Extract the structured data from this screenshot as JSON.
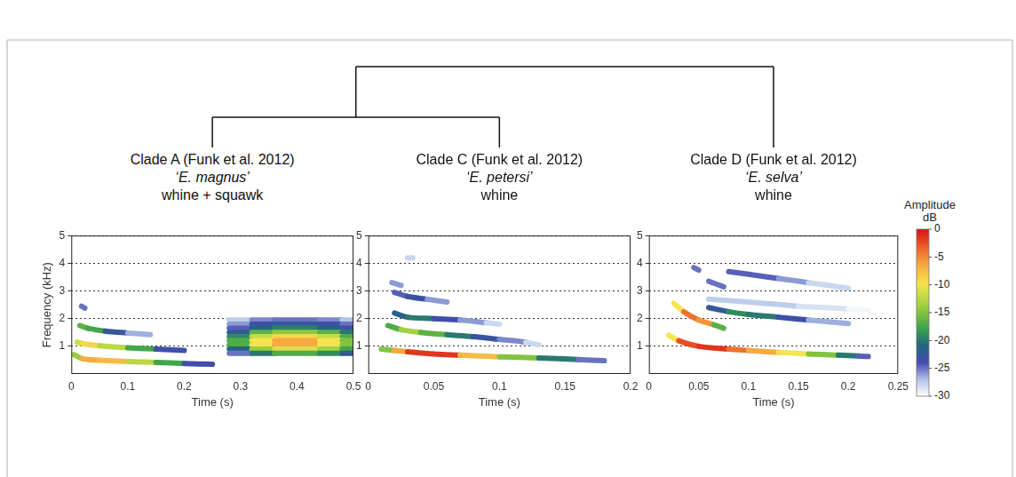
{
  "chart_data": [
    {
      "type": "line",
      "title": "Clade A (Funk et al. 2012)",
      "subtitle": "‘E. magnus’",
      "annotation": "whine + squawk",
      "x_label": "Time (s)",
      "y_label": "Frequency (kHz)",
      "xlim": [
        0,
        0.5
      ],
      "xticks": [
        0,
        0.1,
        0.2,
        0.3,
        0.4,
        0.5
      ],
      "ylim": [
        0,
        5
      ],
      "yticks": [
        1,
        2,
        3,
        4,
        5
      ],
      "grid": true,
      "contours": [
        {
          "x": [
            0.005,
            0.02,
            0.05,
            0.1,
            0.15,
            0.2,
            0.25
          ],
          "values": [
            0.7,
            0.55,
            0.5,
            0.45,
            0.42,
            0.38,
            0.35
          ],
          "amplitude": [
            -20,
            -8,
            -5,
            -10,
            -15,
            -20,
            -27
          ]
        },
        {
          "x": [
            0.01,
            0.02,
            0.05,
            0.1,
            0.15,
            0.2
          ],
          "values": [
            1.15,
            1.1,
            1.02,
            0.95,
            0.9,
            0.85
          ],
          "amplitude": [
            -15,
            -8,
            -10,
            -15,
            -20,
            -27
          ]
        },
        {
          "x": [
            0.015,
            0.03,
            0.06,
            0.1,
            0.14
          ],
          "values": [
            1.75,
            1.65,
            1.55,
            1.48,
            1.42
          ],
          "amplitude": [
            -18,
            -15,
            -20,
            -25,
            -28
          ]
        },
        {
          "x": [
            0.018,
            0.024
          ],
          "values": [
            2.45,
            2.38
          ],
          "amplitude": [
            -25,
            -25
          ]
        },
        {
          "x": [
            0.28,
            0.32,
            0.36,
            0.4,
            0.44,
            0.48,
            0.5
          ],
          "values": [
            0.75,
            0.75,
            0.75,
            0.75,
            0.75,
            0.75,
            0.75
          ],
          "amplitude": [
            -28,
            -22,
            -18,
            -16,
            -18,
            -20,
            -24
          ]
        },
        {
          "x": [
            0.28,
            0.32,
            0.36,
            0.4,
            0.44,
            0.48,
            0.5
          ],
          "values": [
            0.9,
            0.9,
            0.9,
            0.9,
            0.9,
            0.9,
            0.9
          ],
          "amplitude": [
            -26,
            -16,
            -12,
            -10,
            -12,
            -15,
            -20
          ]
        },
        {
          "x": [
            0.28,
            0.32,
            0.36,
            0.4,
            0.44,
            0.48,
            0.5
          ],
          "values": [
            1.05,
            1.05,
            1.05,
            1.05,
            1.05,
            1.05,
            1.05
          ],
          "amplitude": [
            -22,
            -12,
            -8,
            -5,
            -8,
            -12,
            -18
          ]
        },
        {
          "x": [
            0.28,
            0.32,
            0.36,
            0.4,
            0.44,
            0.48,
            0.5
          ],
          "values": [
            1.2,
            1.2,
            1.2,
            1.2,
            1.2,
            1.2,
            1.2
          ],
          "amplitude": [
            -22,
            -12,
            -8,
            -5,
            -8,
            -12,
            -18
          ]
        },
        {
          "x": [
            0.28,
            0.32,
            0.36,
            0.4,
            0.44,
            0.48,
            0.5
          ],
          "values": [
            1.35,
            1.35,
            1.35,
            1.35,
            1.35,
            1.35,
            1.35
          ],
          "amplitude": [
            -24,
            -14,
            -10,
            -8,
            -10,
            -14,
            -20
          ]
        },
        {
          "x": [
            0.28,
            0.32,
            0.36,
            0.4,
            0.44,
            0.48,
            0.5
          ],
          "values": [
            1.5,
            1.5,
            1.5,
            1.5,
            1.5,
            1.5,
            1.5
          ],
          "amplitude": [
            -26,
            -18,
            -15,
            -14,
            -15,
            -18,
            -22
          ]
        },
        {
          "x": [
            0.28,
            0.32,
            0.36,
            0.4,
            0.44,
            0.48,
            0.5
          ],
          "values": [
            1.65,
            1.65,
            1.65,
            1.65,
            1.65,
            1.65,
            1.65
          ],
          "amplitude": [
            -27,
            -22,
            -20,
            -19,
            -20,
            -22,
            -25
          ]
        },
        {
          "x": [
            0.28,
            0.32,
            0.36,
            0.4,
            0.44,
            0.48,
            0.5
          ],
          "values": [
            1.8,
            1.8,
            1.8,
            1.8,
            1.8,
            1.8,
            1.8
          ],
          "amplitude": [
            -28,
            -24,
            -23,
            -22,
            -23,
            -24,
            -26
          ]
        },
        {
          "x": [
            0.28,
            0.32,
            0.36,
            0.4,
            0.44,
            0.48,
            0.5
          ],
          "values": [
            1.95,
            1.95,
            1.95,
            1.95,
            1.95,
            1.95,
            1.95
          ],
          "amplitude": [
            -29,
            -26,
            -25,
            -25,
            -25,
            -26,
            -28
          ]
        }
      ]
    },
    {
      "type": "line",
      "title": "Clade C (Funk et al. 2012)",
      "subtitle": "‘E. petersi’",
      "annotation": "whine",
      "x_label": "Time (s)",
      "xlim": [
        0,
        0.2
      ],
      "xticks": [
        0,
        0.05,
        0.1,
        0.15,
        0.2
      ],
      "ylim": [
        0,
        5
      ],
      "yticks": [
        1,
        2,
        3,
        4,
        5
      ],
      "grid": true,
      "contours": [
        {
          "x": [
            0.01,
            0.02,
            0.03,
            0.05,
            0.07,
            0.1,
            0.13,
            0.16,
            0.18
          ],
          "values": [
            0.9,
            0.85,
            0.8,
            0.72,
            0.68,
            0.62,
            0.58,
            0.52,
            0.48
          ],
          "amplitude": [
            -20,
            -10,
            -3,
            0,
            -3,
            -12,
            -18,
            -22,
            -28
          ]
        },
        {
          "x": [
            0.015,
            0.025,
            0.04,
            0.06,
            0.08,
            0.1,
            0.12,
            0.13
          ],
          "values": [
            1.75,
            1.6,
            1.5,
            1.42,
            1.35,
            1.25,
            1.15,
            1.05
          ],
          "amplitude": [
            -22,
            -12,
            -15,
            -18,
            -22,
            -24,
            -27,
            -29
          ]
        },
        {
          "x": [
            0.02,
            0.03,
            0.05,
            0.07,
            0.09,
            0.1
          ],
          "values": [
            2.2,
            2.05,
            2.0,
            1.95,
            1.85,
            1.8
          ],
          "amplitude": [
            -25,
            -18,
            -22,
            -25,
            -27,
            -29
          ]
        },
        {
          "x": [
            0.02,
            0.03,
            0.045,
            0.06
          ],
          "values": [
            2.95,
            2.8,
            2.7,
            2.6
          ],
          "amplitude": [
            -27,
            -22,
            -24,
            -28
          ]
        },
        {
          "x": [
            0.018,
            0.025
          ],
          "values": [
            3.3,
            3.2
          ],
          "amplitude": [
            -27,
            -25
          ]
        },
        {
          "x": [
            0.03,
            0.034
          ],
          "values": [
            4.2,
            4.2
          ],
          "amplitude": [
            -28,
            -28
          ]
        }
      ]
    },
    {
      "type": "line",
      "title": "Clade D (Funk et al. 2012)",
      "subtitle": "‘E. selva’",
      "annotation": "whine",
      "x_label": "Time (s)",
      "xlim": [
        0,
        0.25
      ],
      "xticks": [
        0,
        0.05,
        0.1,
        0.15,
        0.2,
        0.25
      ],
      "ylim": [
        0,
        5
      ],
      "yticks": [
        1,
        2,
        3,
        4,
        5
      ],
      "grid": true,
      "contours": [
        {
          "x": [
            0.02,
            0.03,
            0.05,
            0.08,
            0.1,
            0.13,
            0.16,
            0.19,
            0.21,
            0.22
          ],
          "values": [
            1.4,
            1.2,
            1.0,
            0.9,
            0.85,
            0.78,
            0.72,
            0.68,
            0.65,
            0.63
          ],
          "amplitude": [
            -15,
            -5,
            0,
            -3,
            -5,
            -8,
            -12,
            -18,
            -22,
            -27
          ]
        },
        {
          "x": [
            0.025,
            0.035,
            0.05,
            0.065,
            0.075
          ],
          "values": [
            2.55,
            2.25,
            1.95,
            1.78,
            1.65
          ],
          "amplitude": [
            -15,
            -5,
            -3,
            -8,
            -25
          ]
        },
        {
          "x": [
            0.06,
            0.08,
            0.1,
            0.13,
            0.16,
            0.2
          ],
          "values": [
            2.4,
            2.25,
            2.15,
            2.05,
            1.95,
            1.82
          ],
          "amplitude": [
            -25,
            -20,
            -18,
            -22,
            -25,
            -28
          ]
        },
        {
          "x": [
            0.06,
            0.1,
            0.15,
            0.2,
            0.22
          ],
          "values": [
            2.7,
            2.6,
            2.45,
            2.35,
            2.3
          ],
          "amplitude": [
            -28,
            -27,
            -28,
            -29,
            -30
          ]
        },
        {
          "x": [
            0.08,
            0.1,
            0.13,
            0.16,
            0.2
          ],
          "values": [
            3.7,
            3.6,
            3.45,
            3.3,
            3.1
          ],
          "amplitude": [
            -25,
            -24,
            -25,
            -27,
            -29
          ]
        },
        {
          "x": [
            0.045,
            0.05
          ],
          "values": [
            3.85,
            3.75
          ],
          "amplitude": [
            -25,
            -25
          ]
        },
        {
          "x": [
            0.06,
            0.075
          ],
          "values": [
            3.35,
            3.15
          ],
          "amplitude": [
            -24,
            -26
          ]
        }
      ]
    }
  ],
  "color_bar": {
    "title": [
      "Amplitude",
      "dB"
    ],
    "range": [
      -30,
      0
    ],
    "ticks": [
      0,
      -5,
      -10,
      -15,
      -20,
      -25,
      -30
    ]
  }
}
